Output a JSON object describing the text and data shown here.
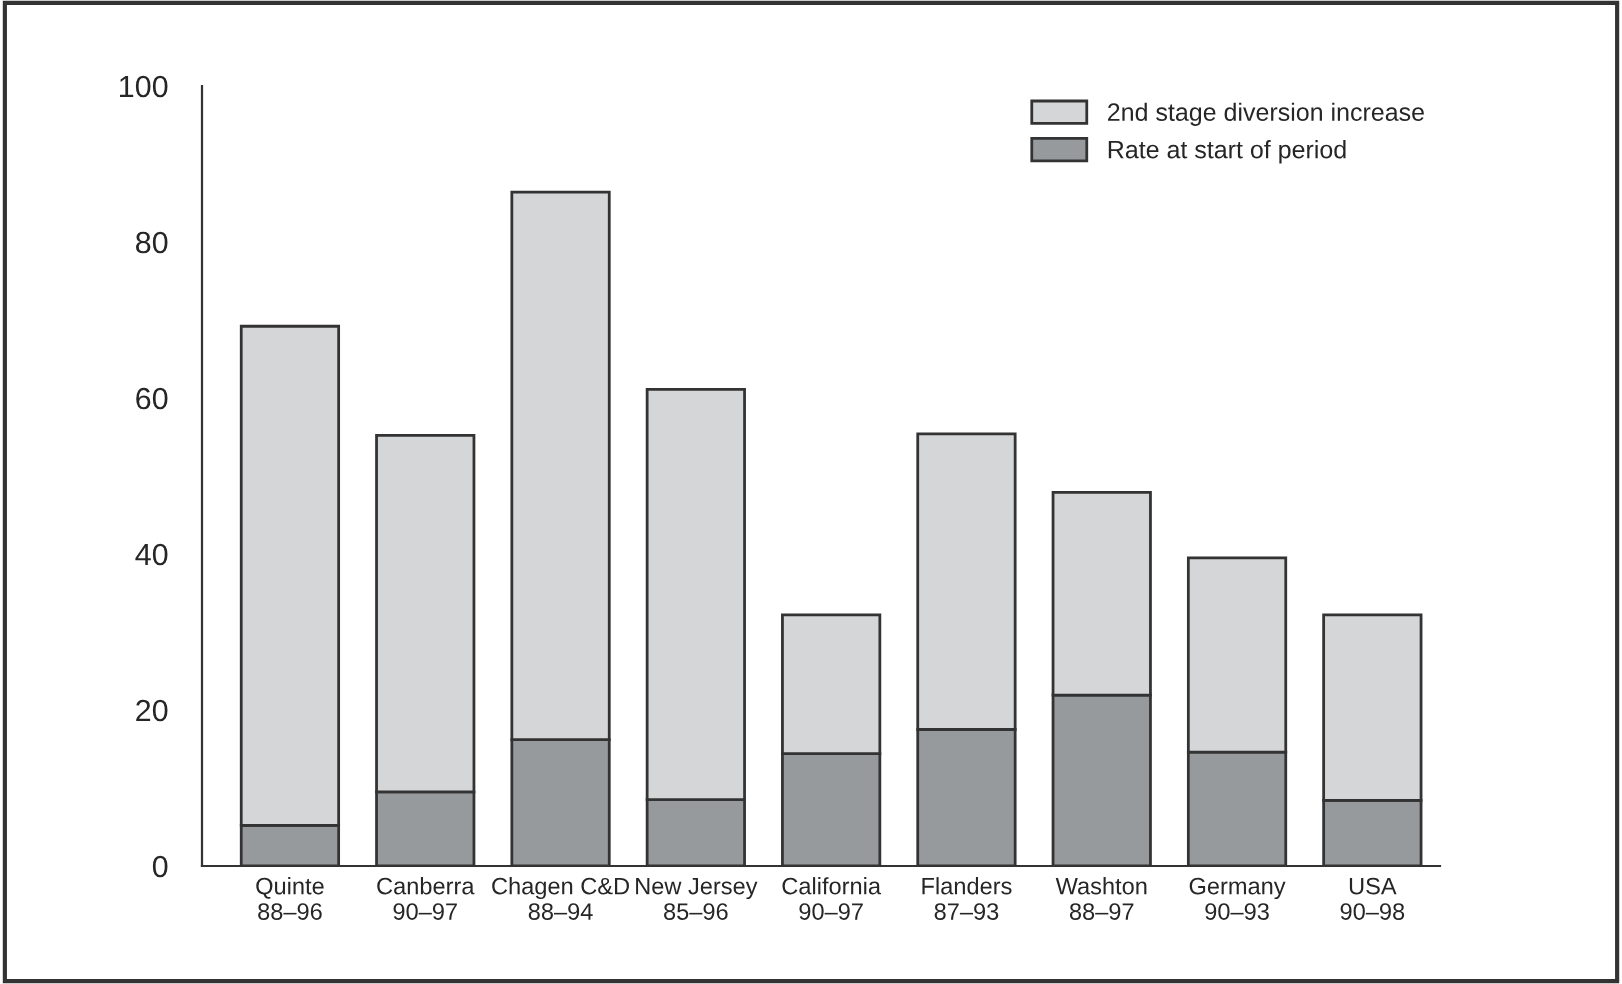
{
  "chart_data": {
    "type": "bar",
    "stacked": true,
    "categories": [
      "Quinte\n88–96",
      "Canberra\n90–97",
      "Chagen C&D\n88–94",
      "New Jersey\n85–96",
      "California\n90–97",
      "Flanders\n87–93",
      "Washton\n88–97",
      "Germany\n90–93",
      "USA\n90–98"
    ],
    "series": [
      {
        "name": "Rate at start of period",
        "color": "#979a9d",
        "values": [
          5.2,
          9.5,
          16.2,
          8.5,
          14.4,
          17.5,
          21.9,
          14.6,
          8.4
        ]
      },
      {
        "name": "2nd stage diversion increase",
        "color": "#d4d6d7",
        "values": [
          64.0,
          45.7,
          70.2,
          52.6,
          17.8,
          37.9,
          26.0,
          24.9,
          23.8
        ]
      }
    ],
    "ylim": [
      0,
      100
    ],
    "yticks": [
      0,
      20,
      40,
      60,
      80,
      100
    ],
    "grid": false,
    "legend": "top right"
  }
}
